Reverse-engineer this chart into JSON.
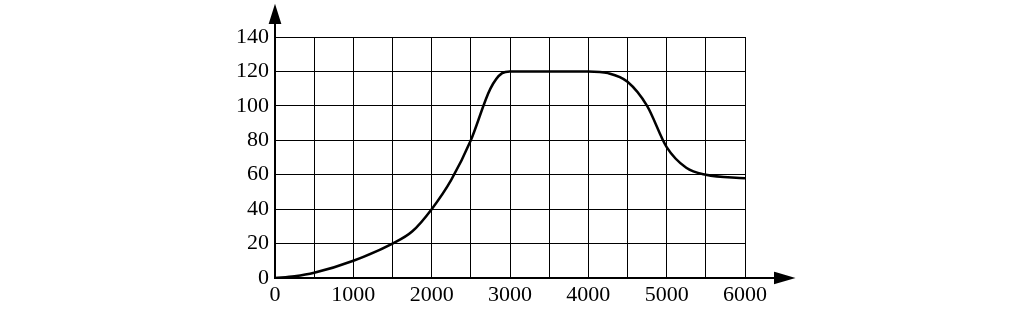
{
  "chart_data": {
    "type": "line",
    "x": [
      0,
      250,
      500,
      1000,
      1500,
      1750,
      2000,
      2250,
      2500,
      2750,
      2900,
      3000,
      3500,
      4000,
      4250,
      4500,
      4750,
      5000,
      5250,
      5500,
      6000
    ],
    "series": [
      {
        "color": "#000000",
        "values": [
          0,
          1,
          3,
          10,
          20,
          27,
          40,
          57,
          80,
          110,
          119,
          120,
          120,
          120,
          119,
          114,
          100,
          76,
          64,
          60,
          58
        ]
      }
    ],
    "xlim": [
      0,
      6000
    ],
    "ylim": [
      0,
      140
    ],
    "xticks": [
      0,
      {
        "value": 500,
        "label": null
      },
      1000,
      {
        "value": 1500,
        "label": null
      },
      2000,
      {
        "value": 2500,
        "label": null
      },
      3000,
      {
        "value": 3500,
        "label": null
      },
      4000,
      {
        "value": 4500,
        "label": null
      },
      5000,
      {
        "value": 5500,
        "label": null
      },
      6000
    ],
    "yticks": [
      0,
      20,
      40,
      60,
      80,
      100,
      120,
      140
    ],
    "grid": true,
    "legend": false,
    "marker": "none",
    "line_style": "solid"
  }
}
